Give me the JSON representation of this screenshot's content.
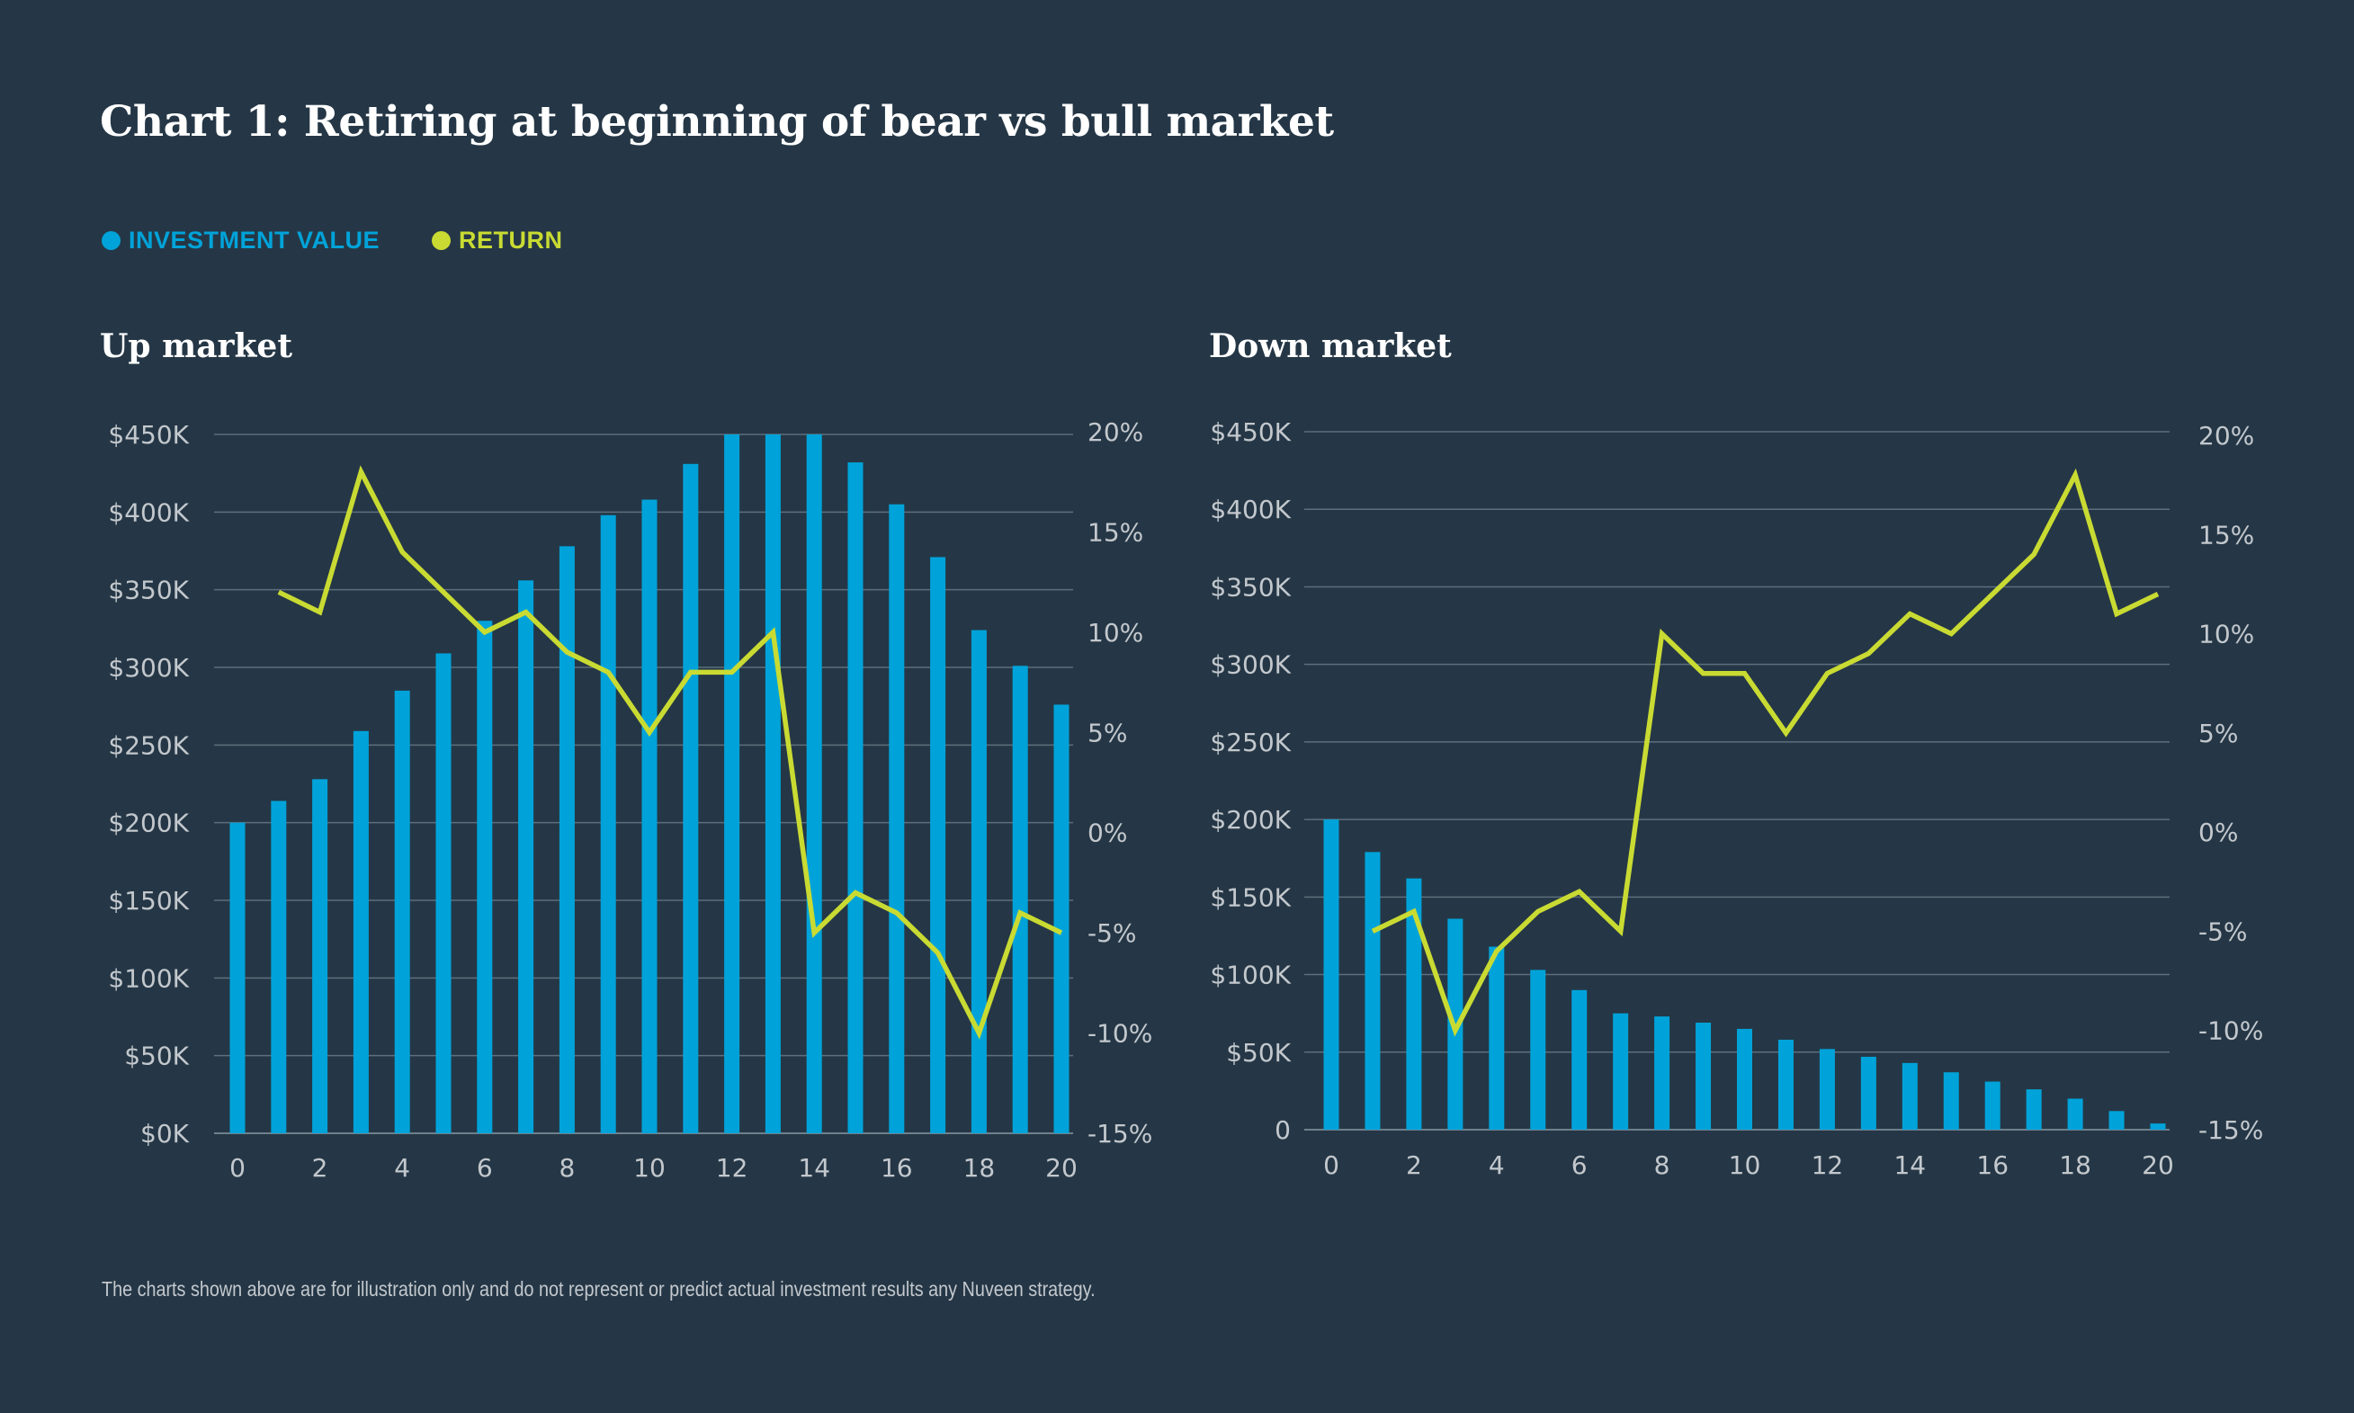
{
  "title": "Chart 1: Retiring at beginning of bear vs bull market",
  "legend": {
    "investment_label": "INVESTMENT VALUE",
    "return_label": "RETURN"
  },
  "colors": {
    "background": "#253746",
    "bar": "#00A3D9",
    "line": "#C9DB32",
    "grid": "#5D6E7C",
    "text": "#C3C8CD"
  },
  "footnote": "The charts shown above are for illustration only and do not represent or predict actual investment results any Nuveen strategy.",
  "chart_data": [
    {
      "type": "bar",
      "title": "Up market",
      "x": [
        0,
        1,
        2,
        3,
        4,
        5,
        6,
        7,
        8,
        9,
        10,
        11,
        12,
        13,
        14,
        15,
        16,
        17,
        18,
        19,
        20
      ],
      "x_tick_labels": [
        "0",
        "2",
        "4",
        "6",
        "8",
        "10",
        "12",
        "14",
        "16",
        "18",
        "20"
      ],
      "y_tick_labels": [
        "$0K",
        "$50K",
        "$100K",
        "$150K",
        "$200K",
        "$250K",
        "$300K",
        "$350K",
        "$400K",
        "$450K"
      ],
      "y2_tick_labels": [
        "-15%",
        "-10%",
        "-5%",
        "0%",
        "5%",
        "10%",
        "15%",
        "20%"
      ],
      "ylim": [
        0,
        450000
      ],
      "y2lim": [
        -15,
        20
      ],
      "series": [
        {
          "name": "INVESTMENT VALUE",
          "type": "bar",
          "axis": "left",
          "values": [
            200000,
            214000,
            228000,
            259000,
            285000,
            309000,
            330000,
            356000,
            378000,
            398000,
            408000,
            431000,
            450000,
            450000,
            450000,
            432000,
            405000,
            371000,
            324000,
            301000,
            276000
          ]
        },
        {
          "name": "RETURN",
          "type": "line",
          "axis": "right",
          "x": [
            1,
            2,
            3,
            4,
            5,
            6,
            7,
            8,
            9,
            10,
            11,
            12,
            13,
            14,
            15,
            16,
            17,
            18,
            19,
            20
          ],
          "values": [
            12,
            11,
            18,
            14,
            12,
            10,
            11,
            9,
            8,
            5,
            8,
            8,
            10,
            -5,
            -3,
            -4,
            -6,
            -10,
            -4,
            -5
          ]
        }
      ]
    },
    {
      "type": "bar",
      "title": "Down market",
      "x": [
        0,
        1,
        2,
        3,
        4,
        5,
        6,
        7,
        8,
        9,
        10,
        11,
        12,
        13,
        14,
        15,
        16,
        17,
        18,
        19,
        20
      ],
      "x_tick_labels": [
        "0",
        "2",
        "4",
        "6",
        "8",
        "10",
        "12",
        "14",
        "16",
        "18",
        "20"
      ],
      "y_tick_labels": [
        "0",
        "$50K",
        "$100K",
        "$150K",
        "$200K",
        "$250K",
        "$300K",
        "$350K",
        "$400K",
        "$450K"
      ],
      "y2_tick_labels": [
        "-15%",
        "-10%",
        "-5%",
        "0%",
        "5%",
        "10%",
        "15%",
        "20%"
      ],
      "ylim": [
        0,
        450000
      ],
      "y2lim": [
        -15,
        20
      ],
      "series": [
        {
          "name": "INVESTMENT VALUE",
          "type": "bar",
          "axis": "left",
          "values": [
            200000,
            179000,
            162000,
            136000,
            118000,
            103000,
            90000,
            75000,
            73000,
            69000,
            65000,
            58000,
            52000,
            47000,
            43000,
            37000,
            31000,
            26000,
            20000,
            12000,
            4000
          ]
        },
        {
          "name": "RETURN",
          "type": "line",
          "axis": "right",
          "x": [
            1,
            2,
            3,
            4,
            5,
            6,
            7,
            8,
            9,
            10,
            11,
            12,
            13,
            14,
            15,
            16,
            17,
            18,
            19,
            20
          ],
          "values": [
            -5,
            -4,
            -10,
            -6,
            -4,
            -3,
            -5,
            10,
            8,
            8,
            5,
            8,
            9,
            11,
            10,
            12,
            14,
            18,
            11,
            12
          ]
        }
      ]
    }
  ]
}
